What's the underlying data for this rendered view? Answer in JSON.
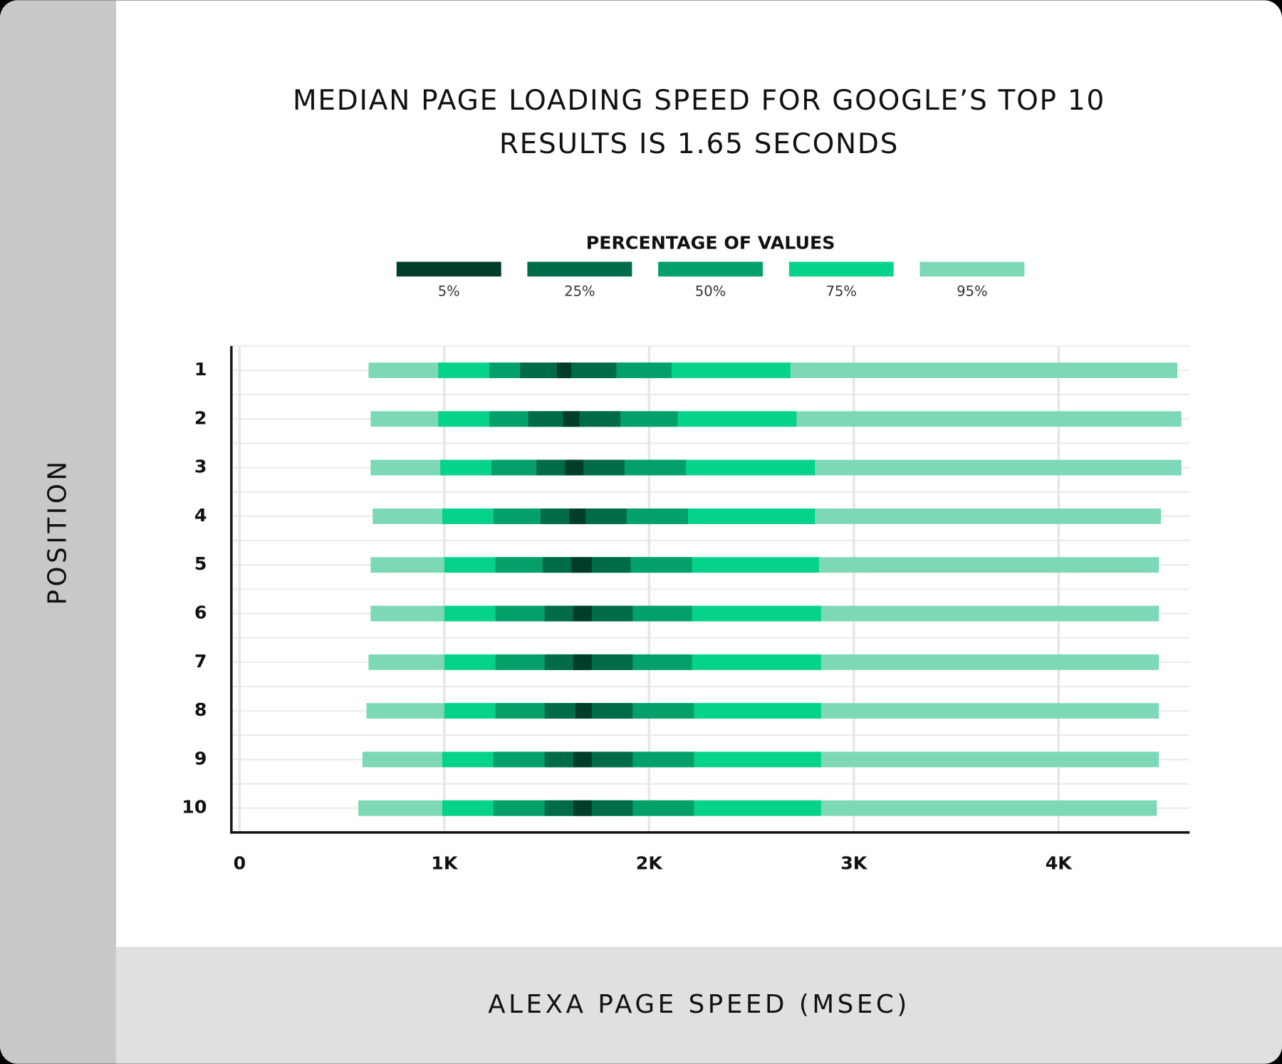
{
  "chart_data": {
    "type": "interval",
    "title": [
      "MEDIAN PAGE LOADING SPEED FOR GOOGLE’S TOP 10",
      "RESULTS IS 1.65 SECONDS"
    ],
    "legend_title": "PERCENTAGE OF VALUES",
    "x_label": "ALEXA PAGE SPEED (MSEC)",
    "y_label": "POSITION",
    "categories": [
      "1",
      "2",
      "3",
      "4",
      "5",
      "6",
      "7",
      "8",
      "9",
      "10"
    ],
    "xlim": [
      -40,
      4640
    ],
    "xticks": [
      0,
      {
        "value": 1000,
        "label": "1K"
      },
      {
        "value": 2000,
        "label": "2K"
      },
      {
        "value": 3000,
        "label": "3K"
      },
      {
        "value": 4000,
        "label": "4K"
      }
    ],
    "grid": true,
    "series": [
      {
        "name": "5%",
        "color": "#003d2b",
        "low": [
          1550,
          1580,
          1590,
          1610,
          1620,
          1630,
          1630,
          1640,
          1630,
          1630
        ],
        "high": [
          1620,
          1660,
          1680,
          1690,
          1720,
          1720,
          1720,
          1720,
          1720,
          1720
        ]
      },
      {
        "name": "25%",
        "color": "#006b48",
        "low": [
          1370,
          1410,
          1450,
          1470,
          1480,
          1490,
          1490,
          1490,
          1490,
          1490
        ],
        "high": [
          1840,
          1860,
          1880,
          1890,
          1910,
          1920,
          1920,
          1920,
          1920,
          1920
        ]
      },
      {
        "name": "50%",
        "color": "#04a06a",
        "low": [
          1220,
          1220,
          1230,
          1240,
          1250,
          1250,
          1250,
          1250,
          1240,
          1240
        ],
        "high": [
          2110,
          2140,
          2180,
          2190,
          2210,
          2210,
          2210,
          2220,
          2220,
          2220
        ]
      },
      {
        "name": "75%",
        "color": "#05d389",
        "low": [
          970,
          970,
          980,
          990,
          1000,
          1000,
          1000,
          1000,
          990,
          990
        ],
        "high": [
          2690,
          2720,
          2810,
          2810,
          2830,
          2840,
          2840,
          2840,
          2840,
          2840
        ]
      },
      {
        "name": "95%",
        "color": "#7dd9b5",
        "low": [
          630,
          640,
          640,
          650,
          640,
          640,
          630,
          620,
          600,
          580
        ],
        "high": [
          4580,
          4600,
          4600,
          4500,
          4490,
          4490,
          4490,
          4490,
          4490,
          4480
        ]
      }
    ]
  }
}
